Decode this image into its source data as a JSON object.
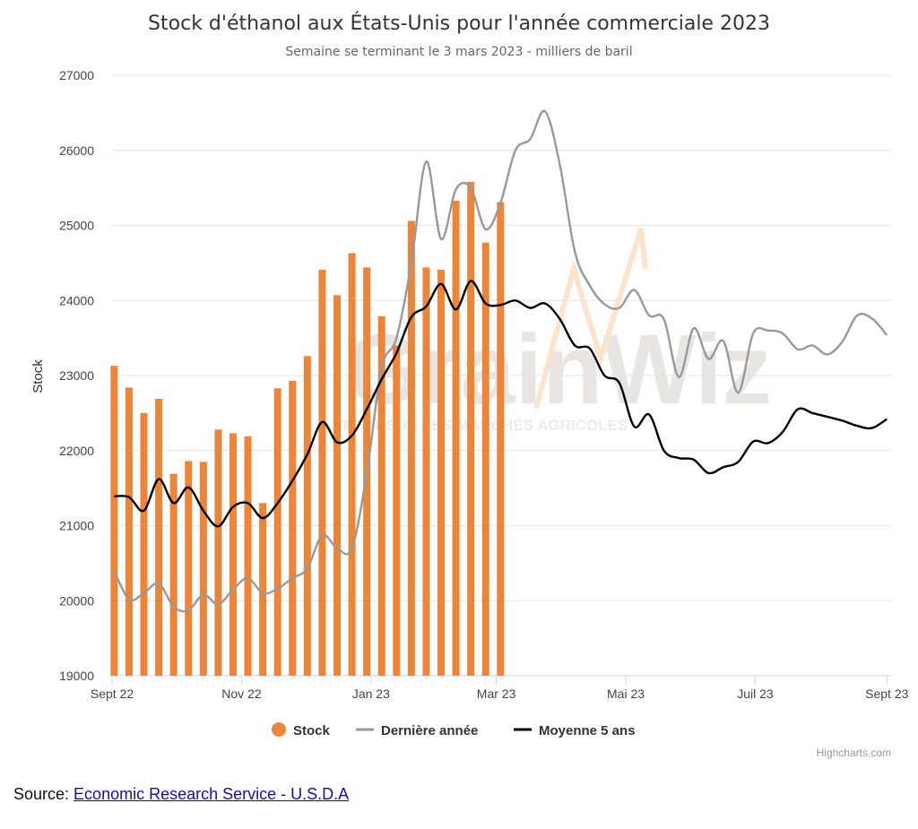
{
  "chart_data": {
    "type": "bar+line",
    "title": "Stock d'éthanol aux États-Unis pour l'année commerciale 2023",
    "subtitle": "Semaine se terminant le 3 mars 2023 - milliers de baril",
    "ylabel": "Stock",
    "ylim": [
      19000,
      27000
    ],
    "yticks": [
      19000,
      20000,
      21000,
      22000,
      23000,
      24000,
      25000,
      26000,
      27000
    ],
    "xlim": [
      "2022-09-01",
      "2023-09-03"
    ],
    "xticks": [
      {
        "date": "2022-09-01",
        "label": "Sept 22"
      },
      {
        "date": "2022-11-01",
        "label": "Nov 22"
      },
      {
        "date": "2023-01-01",
        "label": "Jan 23"
      },
      {
        "date": "2023-03-01",
        "label": "Mar 23"
      },
      {
        "date": "2023-05-01",
        "label": "Mai 23"
      },
      {
        "date": "2023-07-01",
        "label": "Juil 23"
      },
      {
        "date": "2023-09-01",
        "label": "Sept 23"
      }
    ],
    "grid": true,
    "legend_position": "bottom",
    "series": [
      {
        "name": "Stock",
        "type": "column",
        "color": "#ee8436",
        "x": [
          "2022-09-02",
          "2022-09-09",
          "2022-09-16",
          "2022-09-23",
          "2022-09-30",
          "2022-10-07",
          "2022-10-14",
          "2022-10-21",
          "2022-10-28",
          "2022-11-04",
          "2022-11-11",
          "2022-11-18",
          "2022-11-25",
          "2022-12-02",
          "2022-12-09",
          "2022-12-16",
          "2022-12-23",
          "2022-12-30",
          "2023-01-06",
          "2023-01-13",
          "2023-01-20",
          "2023-01-27",
          "2023-02-03",
          "2023-02-10",
          "2023-02-17",
          "2023-02-24",
          "2023-03-03"
        ],
        "values": [
          23130,
          22840,
          22500,
          22690,
          21690,
          21860,
          21850,
          22280,
          22230,
          22190,
          21300,
          22830,
          22930,
          23260,
          24410,
          24070,
          24630,
          24440,
          23790,
          23400,
          25060,
          24440,
          24410,
          25330,
          25580,
          24770,
          25310
        ]
      },
      {
        "name": "Dernière année",
        "type": "line",
        "color": "#999999",
        "x": [
          "2022-09-02",
          "2022-09-09",
          "2022-09-16",
          "2022-09-23",
          "2022-09-30",
          "2022-10-07",
          "2022-10-14",
          "2022-10-21",
          "2022-10-28",
          "2022-11-04",
          "2022-11-11",
          "2022-11-18",
          "2022-11-25",
          "2022-12-02",
          "2022-12-09",
          "2022-12-16",
          "2022-12-23",
          "2022-12-30",
          "2023-01-06",
          "2023-01-13",
          "2023-01-20",
          "2023-01-27",
          "2023-02-03",
          "2023-02-10",
          "2023-02-17",
          "2023-02-24",
          "2023-03-03",
          "2023-03-10",
          "2023-03-17",
          "2023-03-24",
          "2023-03-31",
          "2023-04-07",
          "2023-04-14",
          "2023-04-21",
          "2023-04-28",
          "2023-05-05",
          "2023-05-12",
          "2023-05-19",
          "2023-05-26",
          "2023-06-02",
          "2023-06-09",
          "2023-06-16",
          "2023-06-23",
          "2023-06-30",
          "2023-07-07",
          "2023-07-14",
          "2023-07-21",
          "2023-07-28",
          "2023-08-04",
          "2023-08-11",
          "2023-08-18",
          "2023-08-25",
          "2023-09-01"
        ],
        "values": [
          20400,
          20020,
          20100,
          20230,
          19920,
          19870,
          20080,
          19950,
          20150,
          20300,
          20100,
          20160,
          20300,
          20430,
          20870,
          20700,
          20700,
          21700,
          23100,
          23500,
          24500,
          25850,
          24820,
          25480,
          25500,
          24950,
          25300,
          26000,
          26150,
          26520,
          25800,
          24650,
          24200,
          23950,
          23900,
          24140,
          23800,
          23750,
          22980,
          23630,
          23220,
          23460,
          22770,
          23560,
          23600,
          23560,
          23350,
          23400,
          23280,
          23450,
          23800,
          23760,
          23540
        ]
      },
      {
        "name": "Moyenne 5 ans",
        "type": "line",
        "color": "#000000",
        "x": [
          "2022-09-02",
          "2022-09-09",
          "2022-09-16",
          "2022-09-23",
          "2022-09-30",
          "2022-10-07",
          "2022-10-14",
          "2022-10-21",
          "2022-10-28",
          "2022-11-04",
          "2022-11-11",
          "2022-11-18",
          "2022-11-25",
          "2022-12-02",
          "2022-12-09",
          "2022-12-16",
          "2022-12-23",
          "2022-12-30",
          "2023-01-06",
          "2023-01-13",
          "2023-01-20",
          "2023-01-27",
          "2023-02-03",
          "2023-02-10",
          "2023-02-17",
          "2023-02-24",
          "2023-03-03",
          "2023-03-10",
          "2023-03-17",
          "2023-03-24",
          "2023-03-31",
          "2023-04-07",
          "2023-04-14",
          "2023-04-21",
          "2023-04-28",
          "2023-05-05",
          "2023-05-12",
          "2023-05-19",
          "2023-05-26",
          "2023-06-02",
          "2023-06-09",
          "2023-06-16",
          "2023-06-23",
          "2023-06-30",
          "2023-07-07",
          "2023-07-14",
          "2023-07-21",
          "2023-07-28",
          "2023-08-04",
          "2023-08-11",
          "2023-08-18",
          "2023-08-25",
          "2023-09-01"
        ],
        "values": [
          21390,
          21380,
          21200,
          21620,
          21300,
          21510,
          21200,
          20990,
          21250,
          21300,
          21100,
          21300,
          21600,
          21950,
          22380,
          22110,
          22200,
          22550,
          22950,
          23300,
          23780,
          23920,
          24220,
          23880,
          24260,
          23960,
          23940,
          24000,
          23900,
          23960,
          23750,
          23400,
          23360,
          23000,
          22900,
          22320,
          22480,
          22000,
          21900,
          21880,
          21700,
          21780,
          21850,
          22120,
          22100,
          22250,
          22550,
          22500,
          22450,
          22400,
          22330,
          22300,
          22420
        ]
      }
    ]
  },
  "source": {
    "prefix": "Source: ",
    "link_text": "Economic Research Service - U.S.D.A"
  },
  "credits": "Highcharts.com",
  "watermark": {
    "brand": "GrainWiz",
    "tagline": "TOUT SUR LES MARCHÉS AGRICOLES"
  }
}
